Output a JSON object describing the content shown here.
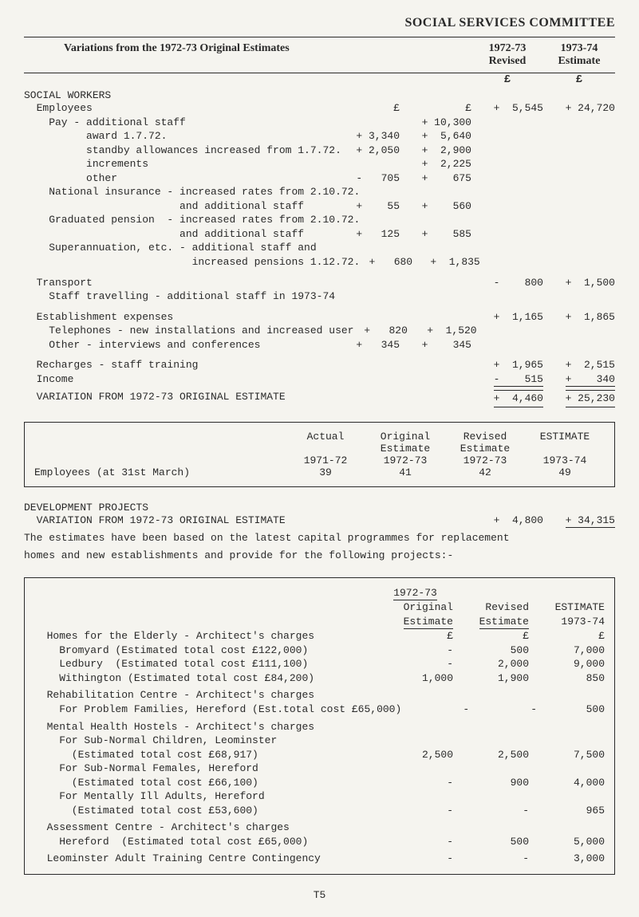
{
  "title": "SOCIAL SERVICES COMMITTEE",
  "header": {
    "left": "Variations from the 1972-73 Original Estimates",
    "rev_a": "1972-73",
    "rev_b": "Revised",
    "est_a": "1973-74",
    "est_b": "Estimate"
  },
  "currency": "£",
  "section1": "SOCIAL WORKERS",
  "rows": {
    "emp": "  Employees",
    "emp_c1": "£",
    "emp_c2": "£",
    "emp_rev": "+  5,545",
    "emp_est": "+ 24,720",
    "pay": "    Pay - additional staff",
    "pay_c2": "+ 10,300",
    "award": "          award 1.7.72.",
    "award_c1": "+ 3,340",
    "award_c2": "+  5,640",
    "standby": "          standby allowances increased from 1.7.72.",
    "standby_c1": "+ 2,050",
    "standby_c2": "+  2,900",
    "incr": "          increments",
    "incr_c2": "+  2,225",
    "other": "          other",
    "other_c1": "-   705",
    "other_c2": "+    675",
    "natins_a": "    National insurance - increased rates from 2.10.72.",
    "natins_b": "                         and additional staff",
    "natins_c1": "+    55",
    "natins_c2": "+    560",
    "grad_a": "    Graduated pension  - increased rates from 2.10.72.",
    "grad_b": "                         and additional staff",
    "grad_c1": "+   125",
    "grad_c2": "+    585",
    "super_a": "    Superannuation, etc. - additional staff and",
    "super_b": "                           increased pensions 1.12.72.",
    "super_c1": "+   680",
    "super_c2": "+  1,835",
    "transport": "  Transport",
    "transport_rev": "-    800",
    "transport_est": "+  1,500",
    "staff_travel": "    Staff travelling - additional staff in 1973-74",
    "estab": "  Establishment expenses",
    "estab_rev": "+  1,165",
    "estab_est": "+  1,865",
    "tel": "    Telephones - new installations and increased user",
    "tel_c1": "+   820",
    "tel_c2": "+  1,520",
    "oth_int": "    Other - interviews and conferences",
    "oth_int_c1": "+   345",
    "oth_int_c2": "+    345",
    "recharges": "  Recharges - staff training",
    "recharges_rev": "+  1,965",
    "recharges_est": "+  2,515",
    "income": "  Income",
    "income_rev": "-    515",
    "income_est": "+    340",
    "variation": "  VARIATION FROM 1972-73 ORIGINAL ESTIMATE",
    "variation_rev": "+  4,460",
    "variation_est": "+ 25,230"
  },
  "box": {
    "h_actual": "Actual",
    "h_orig_a": "Original",
    "h_orig_b": "Estimate",
    "h_rev_a": "Revised",
    "h_rev_b": "Estimate",
    "h_est": "ESTIMATE",
    "y1": "1971-72",
    "y2": "1972-73",
    "y3": "1972-73",
    "y4": "1973-74",
    "label": "Employees (at 31st March)",
    "v1": "39",
    "v2": "41",
    "v3": "42",
    "v4": "49"
  },
  "dev": {
    "head": "DEVELOPMENT PROJECTS",
    "var_label": "  VARIATION FROM 1972-73 ORIGINAL ESTIMATE",
    "var_rev": "+  4,800",
    "var_est": "+ 34,315",
    "p1": "  The estimates have been based on the latest capital programmes for replacement",
    "p2": "    homes and new establishments and provide for the following projects:-"
  },
  "box2": {
    "year": "1972-73",
    "col_orig_a": "Original",
    "col_orig_b": "Estimate",
    "col_rev_a": "Revised",
    "col_rev_b": "Estimate",
    "col_est_a": "ESTIMATE",
    "col_est_b": "1973-74",
    "pound": "£",
    "homes": "  Homes for the Elderly - Architect's charges",
    "brom": "    Bromyard (Estimated total cost £122,000)",
    "brom_o": "-",
    "brom_r": "500",
    "brom_e": "7,000",
    "led": "    Ledbury  (Estimated total cost £111,100)",
    "led_o": "-",
    "led_r": "2,000",
    "led_e": "9,000",
    "with": "    Withington (Estimated total cost £84,200)",
    "with_o": "1,000",
    "with_r": "1,900",
    "with_e": "850",
    "rehab_a": "  Rehabilitation Centre - Architect's charges",
    "rehab_b": "    For Problem Families, Hereford (Est.total cost £65,000)",
    "rehab_o": "-",
    "rehab_r": "-",
    "rehab_e": "500",
    "mental": "  Mental Health Hostels - Architect's charges",
    "sub_a": "    For Sub-Normal Children, Leominster",
    "sub_b": "      (Estimated total cost £68,917)",
    "sub_o": "2,500",
    "sub_r": "2,500",
    "sub_e": "7,500",
    "subf_a": "    For Sub-Normal Females, Hereford",
    "subf_b": "      (Estimated total cost £66,100)",
    "subf_o": "-",
    "subf_r": "900",
    "subf_e": "4,000",
    "ill_a": "    For Mentally Ill Adults, Hereford",
    "ill_b": "      (Estimated total cost £53,600)",
    "ill_o": "-",
    "ill_r": "-",
    "ill_e": "965",
    "assess_a": "  Assessment Centre - Architect's charges",
    "assess_b": "    Hereford  (Estimated total cost £65,000)",
    "assess_o": "-",
    "assess_r": "500",
    "assess_e": "5,000",
    "leo": "  Leominster Adult Training Centre Contingency",
    "leo_o": "-",
    "leo_r": "-",
    "leo_e": "3,000"
  },
  "footer": "T5"
}
